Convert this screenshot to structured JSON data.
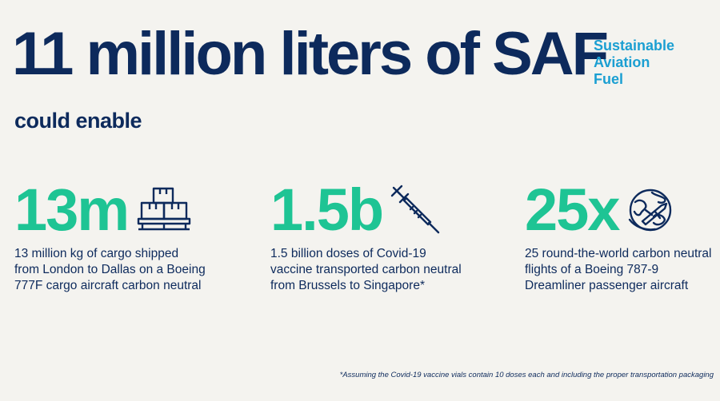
{
  "headline": "11 million liters of SAF",
  "saf_label": [
    "Sustainable",
    "Aviation",
    "Fuel"
  ],
  "subheadline": "could enable",
  "stats": [
    {
      "number": "13m",
      "icon": "cargo-boxes-icon",
      "description": "13 million kg of cargo shipped from London to Dallas on a Boeing 777F cargo aircraft carbon neutral"
    },
    {
      "number": "1.5b",
      "icon": "syringe-icon",
      "description": "1.5 billion doses of Covid-19 vaccine transported carbon neutral from Brussels to Singapore*"
    },
    {
      "number": "25x",
      "icon": "globe-airplane-icon",
      "description": "25 round-the-world carbon neutral flights of a Boeing 787-9 Dreamliner passenger aircraft"
    }
  ],
  "footnote": "*Assuming the Covid-19 vaccine vials contain 10 doses each and including the proper transportation packaging",
  "colors": {
    "background": "#f4f3ef",
    "navy": "#0d2a5c",
    "green": "#1ec494",
    "blue": "#1b9fd2"
  }
}
